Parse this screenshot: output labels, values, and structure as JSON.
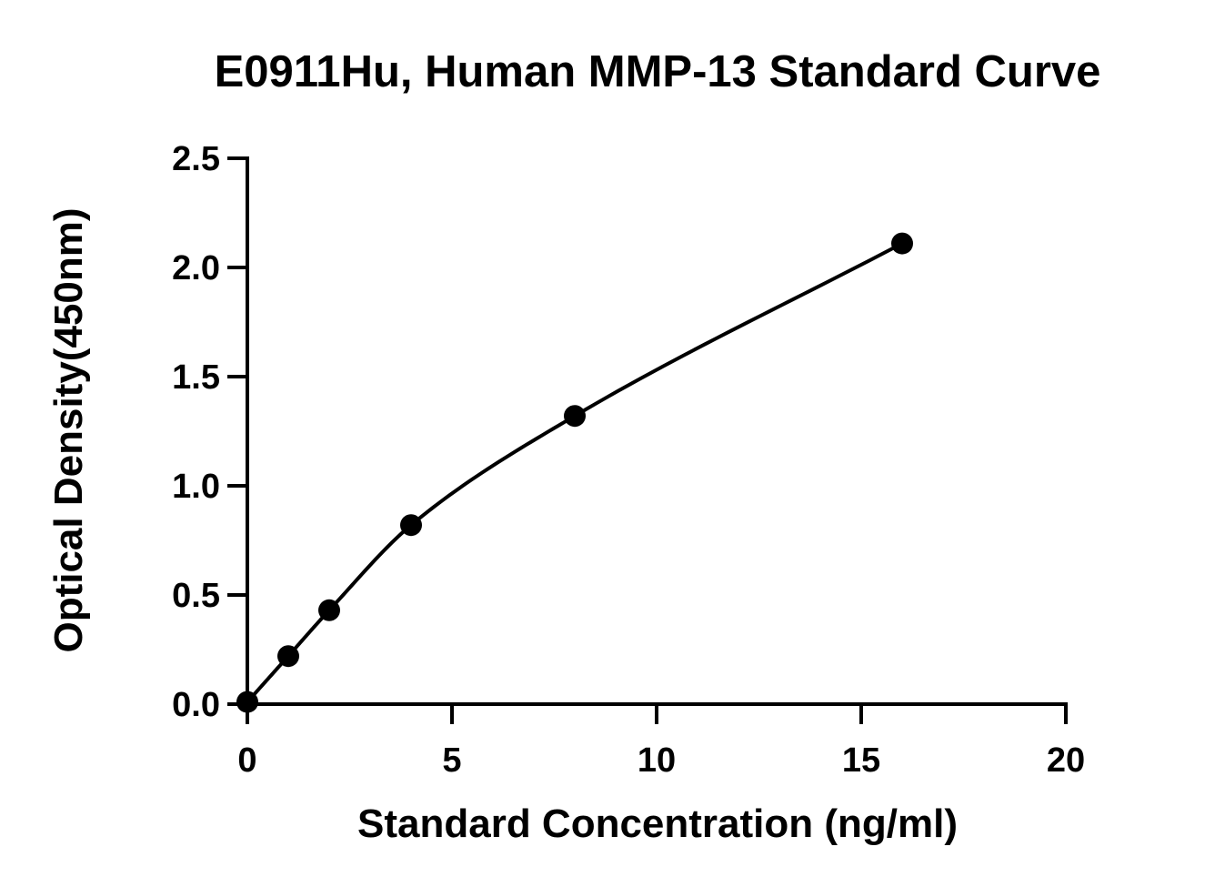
{
  "chart_data": {
    "type": "scatter",
    "title": "E0911Hu, Human MMP-13 Standard Curve",
    "xlabel": "Standard Concentration (ng/ml)",
    "ylabel": "Optical Density(450nm)",
    "xlim": [
      0,
      20
    ],
    "ylim": [
      0,
      2.5
    ],
    "x_ticks": [
      "0",
      "5",
      "10",
      "15",
      "20"
    ],
    "y_ticks": [
      "0.0",
      "0.5",
      "1.0",
      "1.5",
      "2.0",
      "2.5"
    ],
    "grid": false,
    "series": [
      {
        "x": [
          0,
          1,
          2,
          4,
          8,
          16
        ],
        "y": [
          0.01,
          0.22,
          0.43,
          0.82,
          1.32,
          2.11
        ],
        "marker": "circle",
        "fit_curve": true,
        "color": "#000000"
      }
    ]
  }
}
